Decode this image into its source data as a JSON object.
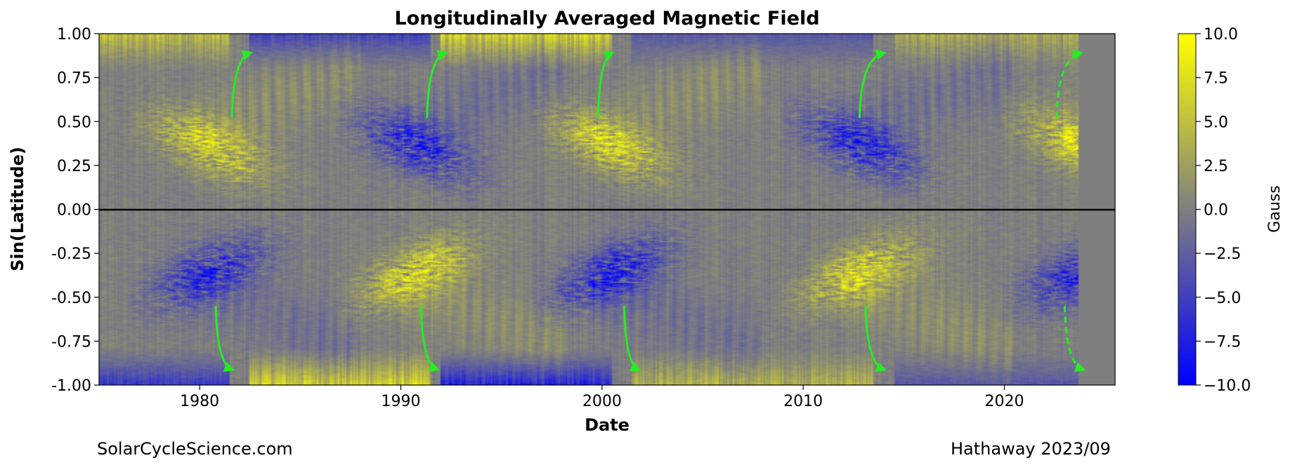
{
  "chart_data": {
    "type": "heatmap",
    "title": "Longitudinally Averaged Magnetic Field",
    "xlabel": "Date",
    "ylabel": "Sin(Latitude)",
    "xlim": [
      1975,
      2025.5
    ],
    "ylim": [
      -1.0,
      1.0
    ],
    "xticks": [
      1980,
      1990,
      2000,
      2010,
      2020
    ],
    "yticks": [
      "1.00",
      "0.75",
      "0.50",
      "0.25",
      "0.00",
      "-0.25",
      "-0.50",
      "-0.75",
      "-1.00"
    ],
    "ytick_values": [
      1.0,
      0.75,
      0.5,
      0.25,
      0.0,
      -0.25,
      -0.5,
      -0.75,
      -1.0
    ],
    "colorbar": {
      "label": "Gauss",
      "range": [
        -10.0,
        10.0
      ],
      "ticks": [
        "10.0",
        "7.5",
        "5.0",
        "2.5",
        "0.0",
        "−2.5",
        "−5.0",
        "−7.5",
        "−10.0"
      ],
      "tick_values": [
        10.0,
        7.5,
        5.0,
        2.5,
        0.0,
        -2.5,
        -5.0,
        -7.5,
        -10.0
      ],
      "colormap": [
        "#0000ff",
        "#7f7f7f",
        "#ffff00"
      ]
    },
    "data_end_year": 2023.7,
    "equator_line": {
      "y": 0.0,
      "color": "#000000"
    },
    "cycles": [
      {
        "start": 1976.5,
        "north_polarity": 1,
        "south_polarity": -1
      },
      {
        "start": 1986.8,
        "north_polarity": -1,
        "south_polarity": 1
      },
      {
        "start": 1996.5,
        "north_polarity": 1,
        "south_polarity": -1
      },
      {
        "start": 2008.9,
        "north_polarity": -1,
        "south_polarity": 1
      },
      {
        "start": 2019.9,
        "north_polarity": 1,
        "south_polarity": -1
      }
    ],
    "polar_field_segments": [
      {
        "from": 1975.0,
        "to": 1981.5,
        "north": 6,
        "south": -7
      },
      {
        "from": 1982.5,
        "to": 1991.5,
        "north": -6,
        "south": 8
      },
      {
        "from": 1992.0,
        "to": 2000.5,
        "north": 8,
        "south": -9
      },
      {
        "from": 2001.5,
        "to": 2013.5,
        "north": -4,
        "south": 5
      },
      {
        "from": 2014.5,
        "to": 2023.7,
        "north": 4,
        "south": -4
      }
    ],
    "poleward_surge_arrows": {
      "color": "#22ee22",
      "arrows": [
        {
          "hemisphere": "north",
          "x_start": 1981.6,
          "x_end": 1982.5,
          "dashed": false
        },
        {
          "hemisphere": "north",
          "x_start": 1991.3,
          "x_end": 1992.2,
          "dashed": false
        },
        {
          "hemisphere": "north",
          "x_start": 1999.8,
          "x_end": 2000.5,
          "dashed": false
        },
        {
          "hemisphere": "north",
          "x_start": 2012.8,
          "x_end": 2014.0,
          "dashed": false
        },
        {
          "hemisphere": "north",
          "x_start": 2022.6,
          "x_end": 2023.8,
          "dashed": true
        },
        {
          "hemisphere": "south",
          "x_start": 1980.8,
          "x_end": 1981.6,
          "dashed": false
        },
        {
          "hemisphere": "south",
          "x_start": 1991.0,
          "x_end": 1991.8,
          "dashed": false
        },
        {
          "hemisphere": "south",
          "x_start": 2001.1,
          "x_end": 2001.8,
          "dashed": false
        },
        {
          "hemisphere": "south",
          "x_start": 2013.1,
          "x_end": 2014.0,
          "dashed": false
        },
        {
          "hemisphere": "south",
          "x_start": 2023.0,
          "x_end": 2023.9,
          "dashed": true
        }
      ]
    }
  },
  "footer": {
    "left": "SolarCycleScience.com",
    "right": "Hathaway 2023/09"
  }
}
